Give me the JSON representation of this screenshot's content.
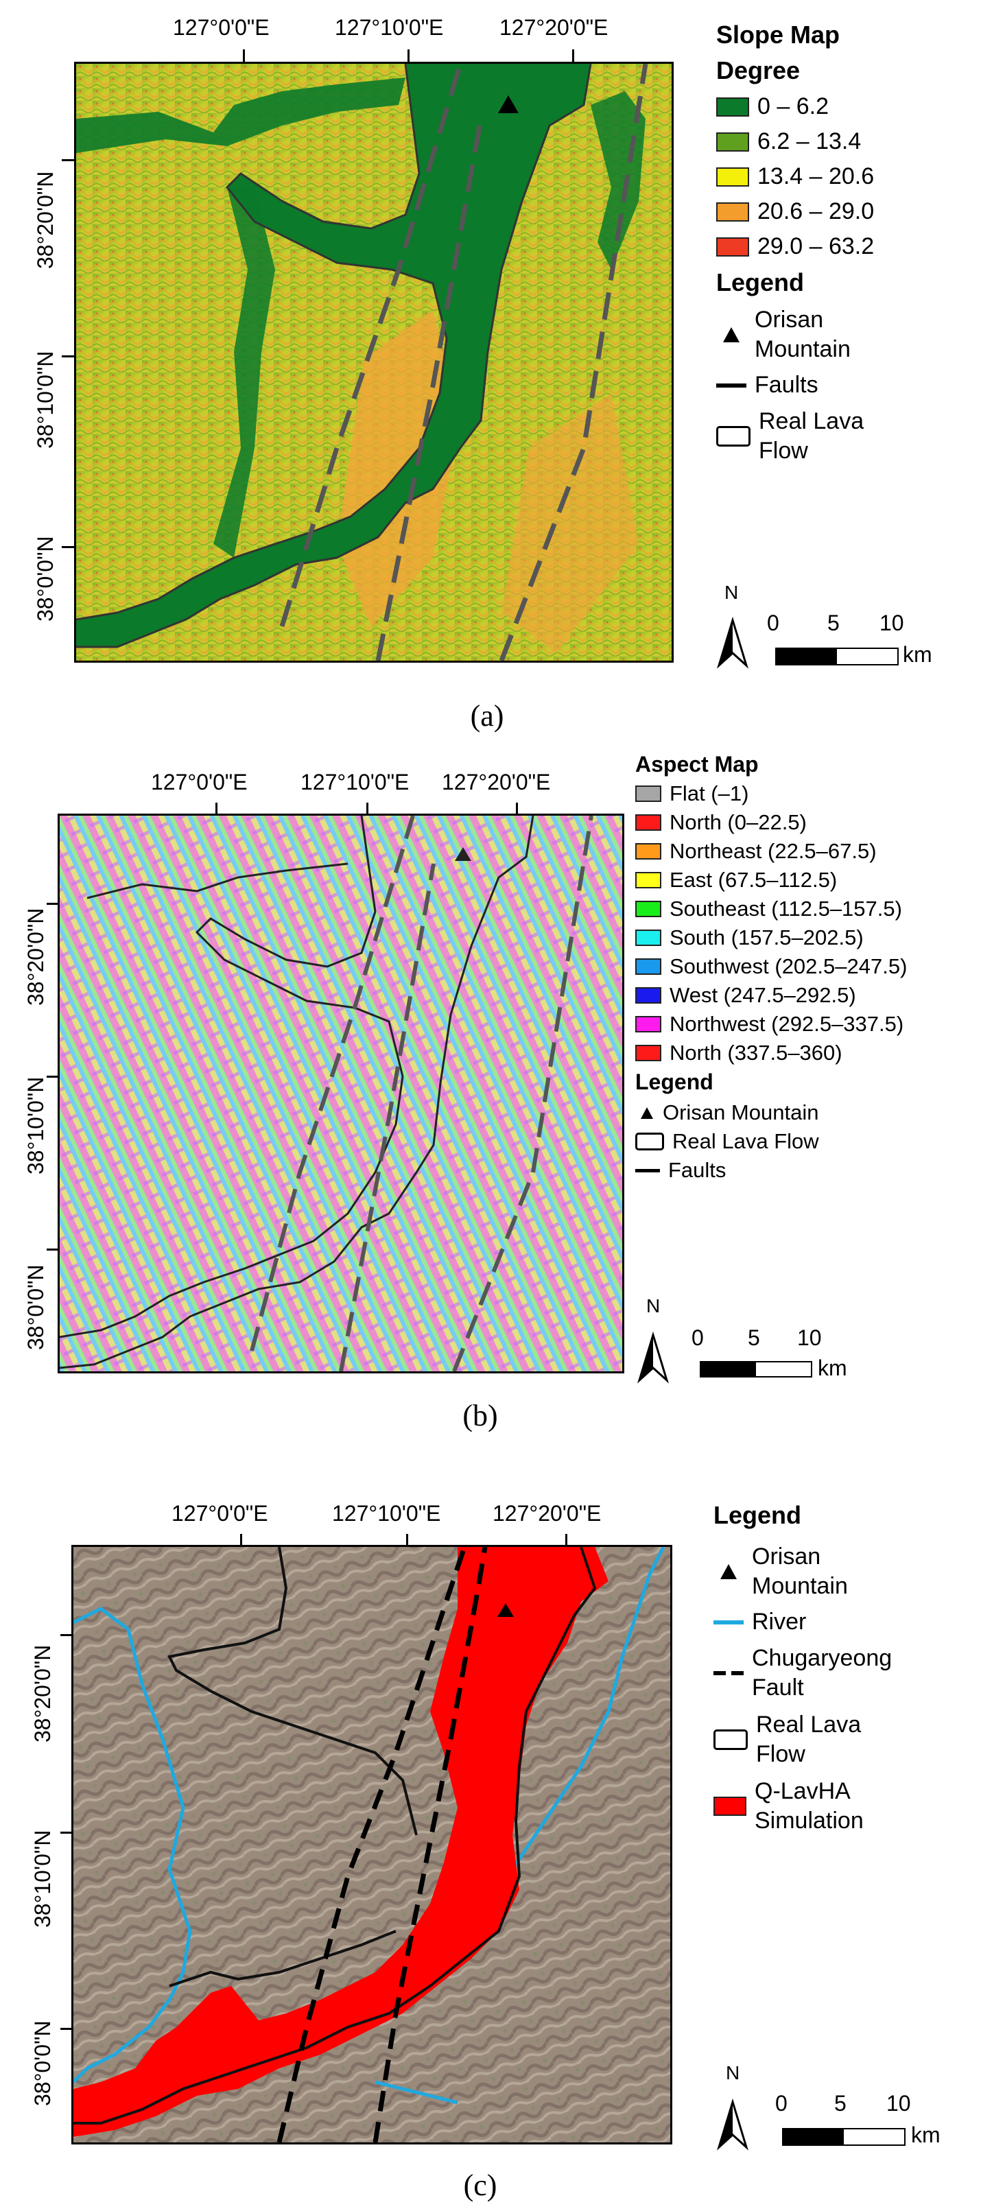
{
  "panel_a": {
    "x_ticks": [
      "127°0'0\"E",
      "127°10'0\"E",
      "127°20'0\"E"
    ],
    "y_ticks": [
      "38°20'0\"N",
      "38°10'0\"N",
      "38°0'0\"N"
    ],
    "legend_title": "Slope Map",
    "legend_subtitle": "Degree",
    "classes": [
      {
        "label": "0 – 6.2",
        "color": "#0b7a2a"
      },
      {
        "label": "6.2 – 13.4",
        "color": "#5fa11f"
      },
      {
        "label": "13.4 – 20.6",
        "color": "#f5f00a"
      },
      {
        "label": "20.6 – 29.0",
        "color": "#f39d2c"
      },
      {
        "label": "29.0 – 63.2",
        "color": "#ee3b24"
      }
    ],
    "legend_heading": "Legend",
    "symbols": {
      "mountain": "Orisan Mountain",
      "faults": "Faults",
      "lava": "Real Lava Flow"
    },
    "scale": {
      "zero": "0",
      "mid": "5",
      "end": "10",
      "unit": "km"
    },
    "north": "N",
    "caption": "(a)"
  },
  "panel_b": {
    "x_ticks": [
      "127°0'0\"E",
      "127°10'0\"E",
      "127°20'0\"E"
    ],
    "y_ticks": [
      "38°20'0\"N",
      "38°10'0\"N",
      "38°0'0\"N"
    ],
    "legend_title": "Aspect Map",
    "classes": [
      {
        "label": "Flat (–1)",
        "color": "#a6a6a6"
      },
      {
        "label": "North (0–22.5)",
        "color": "#ff1a1a"
      },
      {
        "label": "Northeast (22.5–67.5)",
        "color": "#ff9a1a"
      },
      {
        "label": "East (67.5–112.5)",
        "color": "#ffff1a"
      },
      {
        "label": "Southeast (112.5–157.5)",
        "color": "#1aee1a"
      },
      {
        "label": "South (157.5–202.5)",
        "color": "#1aeeee"
      },
      {
        "label": "Southwest (202.5–247.5)",
        "color": "#1a9aee"
      },
      {
        "label": "West (247.5–292.5)",
        "color": "#1a1aee"
      },
      {
        "label": "Northwest (292.5–337.5)",
        "color": "#ff1aee"
      },
      {
        "label": "North (337.5–360)",
        "color": "#ff1a1a"
      }
    ],
    "legend_heading": "Legend",
    "symbols": {
      "mountain": "Orisan Mountain",
      "lava": "Real Lava Flow",
      "faults": "Faults"
    },
    "scale": {
      "zero": "0",
      "mid": "5",
      "end": "10",
      "unit": "km"
    },
    "north": "N",
    "caption": "(b)"
  },
  "panel_c": {
    "x_ticks": [
      "127°0'0\"E",
      "127°10'0\"E",
      "127°20'0\"E"
    ],
    "y_ticks": [
      "38°20'0\"N",
      "38°10'0\"N",
      "38°0'0\"N"
    ],
    "legend_heading": "Legend",
    "symbols": {
      "mountain": "Orisan Mountain",
      "river": "River",
      "fault": "Chugaryeong Fault",
      "lava": "Real Lava Flow",
      "sim": "Q-LavHA Simulation"
    },
    "sim_color": "#ff0000",
    "river_color": "#1fa9df",
    "scale": {
      "zero": "0",
      "mid": "5",
      "end": "10",
      "unit": "km"
    },
    "north": "N",
    "caption": "(c)"
  }
}
